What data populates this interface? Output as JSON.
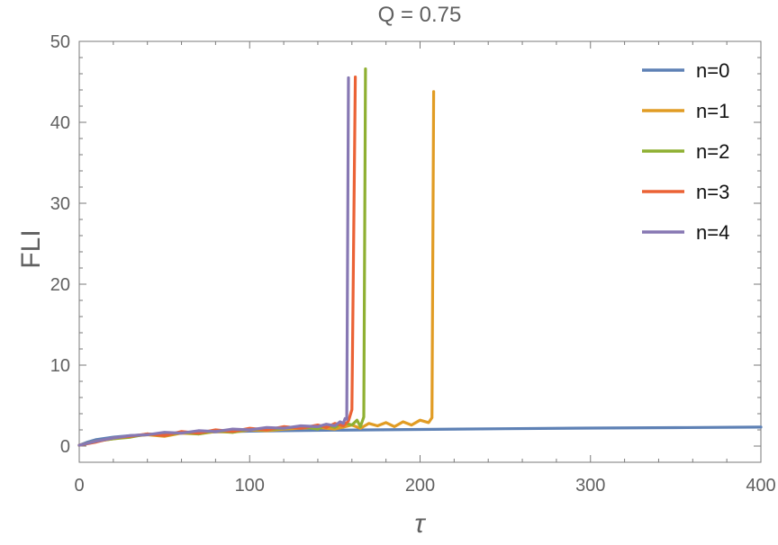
{
  "chart_data": {
    "type": "line",
    "title": "Q = 0.75",
    "xlabel": "τ",
    "ylabel": "FLI",
    "xlim": [
      0,
      400
    ],
    "ylim": [
      -2,
      50
    ],
    "xticks": [
      0,
      100,
      200,
      300,
      400
    ],
    "xtick_labels": [
      "0",
      "100",
      "200",
      "300",
      "400"
    ],
    "yticks": [
      0,
      10,
      20,
      30,
      40,
      50
    ],
    "ytick_labels": [
      "0",
      "10",
      "20",
      "30",
      "40",
      "50"
    ],
    "grid": false,
    "legend_position": "top-right",
    "series": [
      {
        "name": "n=0",
        "color": "#5E81B5",
        "x": [
          0,
          5,
          10,
          20,
          30,
          40,
          50,
          60,
          80,
          100,
          120,
          150,
          200,
          250,
          300,
          350,
          400
        ],
        "y": [
          0.1,
          0.5,
          0.8,
          1.1,
          1.3,
          1.4,
          1.5,
          1.6,
          1.75,
          1.85,
          1.9,
          1.97,
          2.06,
          2.14,
          2.22,
          2.28,
          2.34
        ]
      },
      {
        "name": "n=1",
        "color": "#E19C24",
        "x": [
          0,
          10,
          20,
          30,
          40,
          50,
          60,
          70,
          80,
          90,
          100,
          110,
          120,
          130,
          140,
          150,
          160,
          165,
          170,
          175,
          180,
          185,
          190,
          195,
          200,
          205,
          207,
          208
        ],
        "y": [
          0.1,
          0.6,
          0.9,
          1.2,
          1.4,
          1.2,
          1.6,
          1.5,
          1.8,
          1.7,
          2.0,
          1.9,
          2.1,
          2.2,
          2.3,
          2.1,
          2.6,
          2.2,
          2.8,
          2.5,
          2.9,
          2.4,
          3.0,
          2.6,
          3.2,
          2.9,
          3.5,
          43.8
        ]
      },
      {
        "name": "n=2",
        "color": "#8FB032",
        "x": [
          0,
          10,
          20,
          30,
          40,
          50,
          60,
          70,
          80,
          90,
          100,
          110,
          120,
          130,
          140,
          145,
          150,
          155,
          160,
          163,
          165,
          167,
          168
        ],
        "y": [
          0.1,
          0.6,
          0.9,
          1.1,
          1.5,
          1.3,
          1.7,
          1.5,
          1.9,
          1.7,
          2.1,
          2.0,
          2.2,
          2.4,
          2.1,
          2.6,
          2.3,
          2.9,
          2.6,
          3.2,
          2.4,
          3.6,
          46.6
        ]
      },
      {
        "name": "n=3",
        "color": "#EB6235",
        "x": [
          0,
          10,
          20,
          30,
          40,
          50,
          60,
          70,
          80,
          90,
          100,
          110,
          120,
          130,
          140,
          145,
          150,
          155,
          158,
          160,
          162
        ],
        "y": [
          0.1,
          0.5,
          1.0,
          1.2,
          1.5,
          1.3,
          1.8,
          1.6,
          2.0,
          1.8,
          2.2,
          2.0,
          2.4,
          2.2,
          2.6,
          2.3,
          2.8,
          2.5,
          3.1,
          4.5,
          45.6
        ]
      },
      {
        "name": "n=4",
        "color": "#8778B3",
        "x": [
          0,
          10,
          20,
          30,
          40,
          50,
          60,
          70,
          80,
          90,
          100,
          110,
          120,
          130,
          140,
          145,
          150,
          153,
          155,
          156,
          157,
          158
        ],
        "y": [
          0.1,
          0.6,
          1.0,
          1.3,
          1.4,
          1.7,
          1.6,
          1.9,
          1.8,
          2.1,
          2.0,
          2.3,
          2.2,
          2.5,
          2.4,
          2.7,
          2.5,
          3.0,
          2.8,
          3.4,
          3.3,
          45.5
        ]
      }
    ]
  }
}
